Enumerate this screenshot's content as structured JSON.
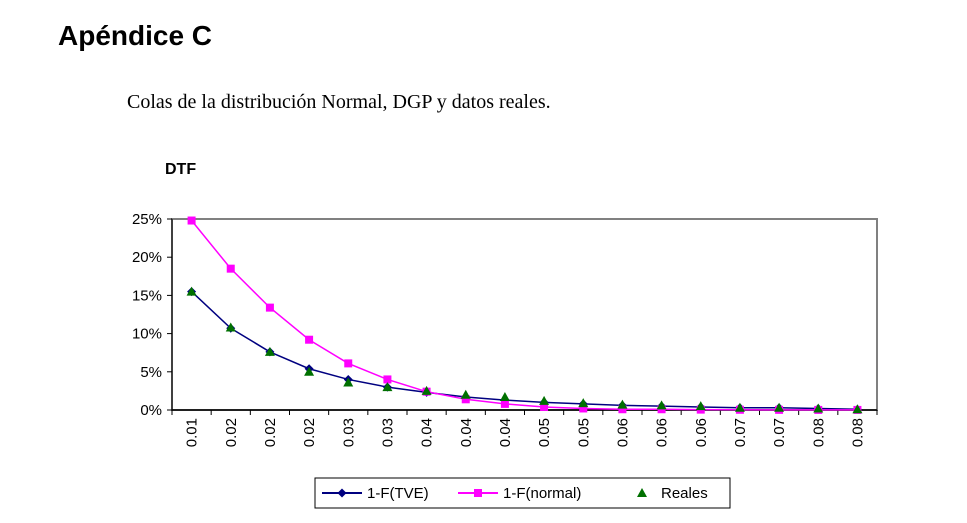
{
  "page": {
    "heading": "Apéndice C",
    "caption": "Colas de la distribución Normal, DGP y datos reales."
  },
  "chart_data": {
    "type": "line",
    "title": "DTF",
    "xlabel": "",
    "ylabel": "",
    "categories": [
      "0.01",
      "0.02",
      "0.02",
      "0.02",
      "0.03",
      "0.03",
      "0.04",
      "0.04",
      "0.04",
      "0.05",
      "0.05",
      "0.06",
      "0.06",
      "0.06",
      "0.07",
      "0.07",
      "0.08",
      "0.08"
    ],
    "ylim": [
      0,
      0.25
    ],
    "yticks": [
      "0%",
      "5%",
      "10%",
      "15%",
      "20%",
      "25%"
    ],
    "grid": true,
    "legend_position": "bottom",
    "series": [
      {
        "name": "1-F(TVE)",
        "color": "#000080",
        "marker": "diamond",
        "line": true,
        "values": [
          0.155,
          0.107,
          0.076,
          0.054,
          0.04,
          0.03,
          0.023,
          0.017,
          0.013,
          0.01,
          0.008,
          0.006,
          0.005,
          0.004,
          0.003,
          0.003,
          0.002,
          0.001
        ]
      },
      {
        "name": "1-F(normal)",
        "color": "#ff00ff",
        "marker": "square",
        "line": true,
        "values": [
          0.248,
          0.185,
          0.134,
          0.092,
          0.061,
          0.04,
          0.024,
          0.014,
          0.008,
          0.004,
          0.002,
          0.001,
          0.001,
          0.0005,
          0.0003,
          0.0002,
          0.0001,
          0.0001
        ]
      },
      {
        "name": "Reales",
        "color": "#007000",
        "marker": "triangle",
        "line": false,
        "values": [
          0.155,
          0.108,
          0.076,
          0.05,
          0.036,
          0.03,
          0.025,
          0.02,
          0.017,
          0.012,
          0.009,
          0.007,
          0.006,
          0.005,
          0.003,
          0.003,
          0.002,
          0.001
        ]
      }
    ]
  }
}
